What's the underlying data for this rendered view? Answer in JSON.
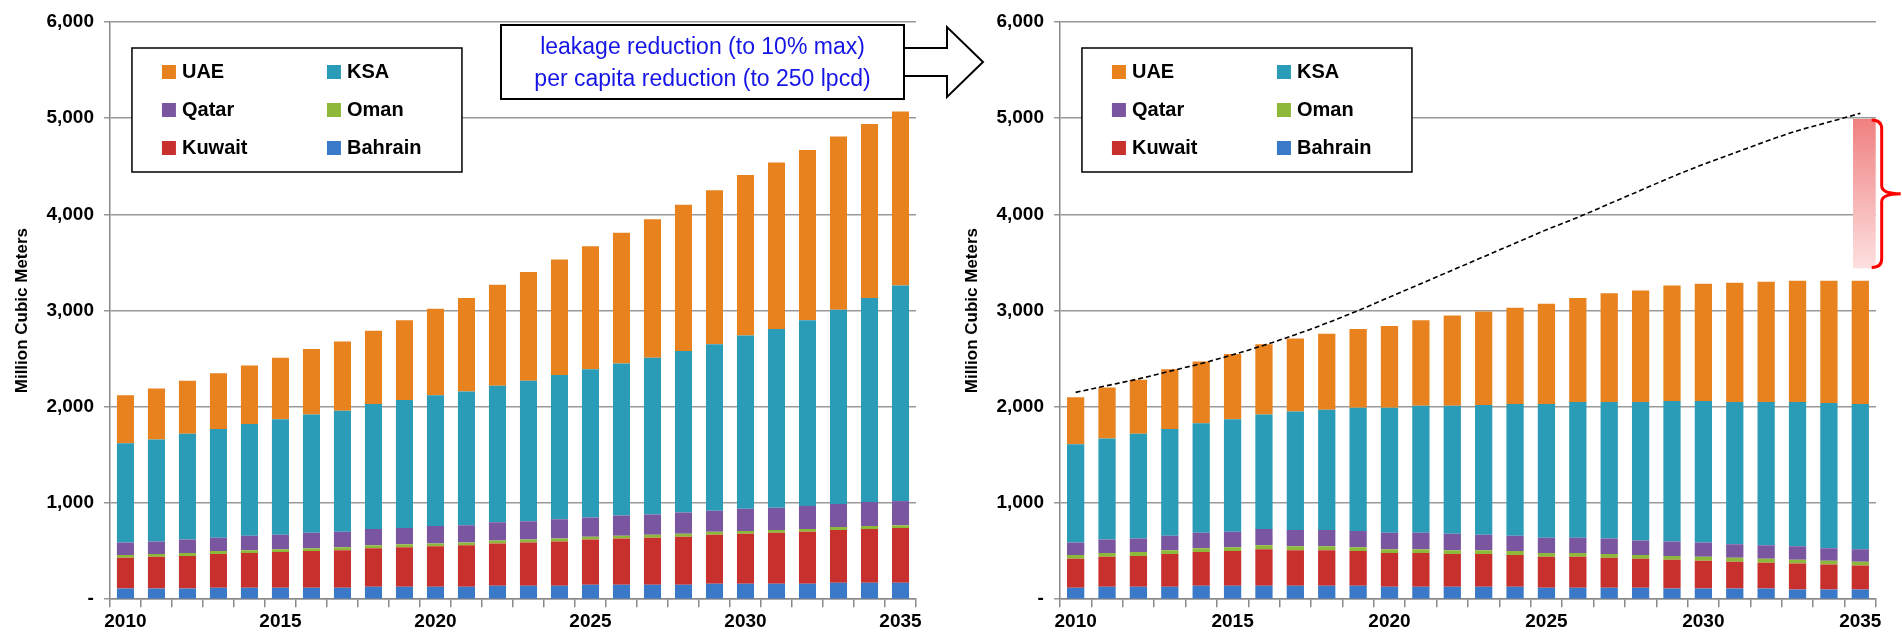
{
  "chart_data": [
    {
      "type": "bar",
      "stacked": true,
      "ylabel": "Million Cubic Meters",
      "ylim": [
        0,
        6000
      ],
      "yticks": [
        {
          "value": 0,
          "label": "-"
        },
        {
          "value": 1000,
          "label": "1,000"
        },
        {
          "value": 2000,
          "label": "2,000"
        },
        {
          "value": 3000,
          "label": "3,000"
        },
        {
          "value": 4000,
          "label": "4,000"
        },
        {
          "value": 5000,
          "label": "5,000"
        },
        {
          "value": 6000,
          "label": "6,000"
        }
      ],
      "grid": "y",
      "legend": "top left",
      "categories": [
        "2010",
        null,
        null,
        null,
        null,
        "2015",
        null,
        null,
        null,
        null,
        "2020",
        null,
        null,
        null,
        null,
        "2025",
        null,
        null,
        null,
        null,
        "2030",
        null,
        null,
        null,
        null,
        "2035"
      ],
      "series": [
        {
          "name": "Bahrain",
          "color": "#3a78c8",
          "values": [
            110,
            110,
            110,
            120,
            120,
            120,
            120,
            120,
            130,
            130,
            130,
            130,
            140,
            140,
            140,
            150,
            150,
            150,
            150,
            160,
            160,
            160,
            160,
            170,
            170,
            170
          ]
        },
        {
          "name": "Kuwait",
          "color": "#c8302e",
          "values": [
            320,
            330,
            340,
            350,
            360,
            370,
            380,
            390,
            400,
            410,
            420,
            430,
            440,
            450,
            460,
            470,
            480,
            490,
            500,
            510,
            520,
            530,
            540,
            550,
            560,
            570
          ]
        },
        {
          "name": "Oman",
          "color": "#8db83a",
          "values": [
            30,
            30,
            30,
            30,
            30,
            30,
            30,
            30,
            30,
            30,
            30,
            30,
            30,
            30,
            30,
            30,
            30,
            30,
            30,
            30,
            30,
            30,
            30,
            30,
            30,
            30
          ]
        },
        {
          "name": "Qatar",
          "color": "#7a55a0",
          "values": [
            130,
            130,
            140,
            140,
            150,
            150,
            160,
            160,
            170,
            170,
            180,
            180,
            190,
            190,
            200,
            200,
            210,
            210,
            220,
            220,
            230,
            230,
            240,
            240,
            250,
            250
          ]
        },
        {
          "name": "KSA",
          "color": "#2b9cb8",
          "values": [
            1030,
            1060,
            1100,
            1130,
            1160,
            1200,
            1230,
            1260,
            1300,
            1330,
            1360,
            1390,
            1420,
            1460,
            1500,
            1540,
            1580,
            1630,
            1680,
            1730,
            1800,
            1860,
            1930,
            2020,
            2120,
            2240
          ]
        },
        {
          "name": "UAE",
          "color": "#e8821e",
          "values": [
            500,
            530,
            550,
            580,
            610,
            640,
            680,
            720,
            760,
            830,
            900,
            970,
            1050,
            1130,
            1200,
            1280,
            1360,
            1440,
            1520,
            1600,
            1670,
            1730,
            1770,
            1800,
            1810,
            1810
          ]
        }
      ],
      "annotations": [
        "leakage reduction (to 10% max)",
        "per capita reduction (to 250 lpcd)"
      ]
    },
    {
      "type": "bar",
      "stacked": true,
      "ylabel": "Million Cubic Meters",
      "ylim": [
        0,
        6000
      ],
      "yticks": [
        {
          "value": 0,
          "label": "-"
        },
        {
          "value": 1000,
          "label": "1,000"
        },
        {
          "value": 2000,
          "label": "2,000"
        },
        {
          "value": 3000,
          "label": "3,000"
        },
        {
          "value": 4000,
          "label": "4,000"
        },
        {
          "value": 5000,
          "label": "5,000"
        },
        {
          "value": 6000,
          "label": "6,000"
        }
      ],
      "grid": "y",
      "legend": "top left",
      "categories": [
        "2010",
        null,
        null,
        null,
        null,
        "2015",
        null,
        null,
        null,
        null,
        "2020",
        null,
        null,
        null,
        null,
        "2025",
        null,
        null,
        null,
        null,
        "2030",
        null,
        null,
        null,
        null,
        "2035"
      ],
      "series": [
        {
          "name": "Bahrain",
          "color": "#3a78c8",
          "values": [
            120,
            130,
            130,
            130,
            140,
            140,
            140,
            140,
            140,
            140,
            130,
            130,
            130,
            130,
            130,
            120,
            120,
            120,
            120,
            110,
            110,
            110,
            110,
            100,
            100,
            100
          ]
        },
        {
          "name": "Kuwait",
          "color": "#c8302e",
          "values": [
            300,
            310,
            320,
            340,
            350,
            360,
            380,
            370,
            370,
            360,
            350,
            350,
            340,
            340,
            330,
            320,
            320,
            310,
            300,
            300,
            290,
            280,
            270,
            270,
            260,
            250
          ]
        },
        {
          "name": "Oman",
          "color": "#8db83a",
          "values": [
            40,
            40,
            40,
            40,
            40,
            40,
            40,
            40,
            40,
            40,
            40,
            40,
            40,
            40,
            40,
            40,
            40,
            40,
            40,
            40,
            40,
            40,
            40,
            40,
            40,
            40
          ]
        },
        {
          "name": "Qatar",
          "color": "#7a55a0",
          "values": [
            130,
            140,
            140,
            150,
            160,
            160,
            170,
            170,
            170,
            170,
            170,
            170,
            170,
            160,
            160,
            160,
            160,
            160,
            150,
            150,
            150,
            140,
            140,
            140,
            130,
            130
          ]
        },
        {
          "name": "KSA",
          "color": "#2b9cb8",
          "values": [
            1020,
            1050,
            1090,
            1110,
            1140,
            1170,
            1190,
            1230,
            1250,
            1280,
            1300,
            1320,
            1330,
            1350,
            1370,
            1390,
            1410,
            1420,
            1440,
            1460,
            1470,
            1480,
            1490,
            1500,
            1510,
            1510
          ]
        },
        {
          "name": "UAE",
          "color": "#e8821e",
          "values": [
            490,
            530,
            560,
            620,
            640,
            680,
            730,
            760,
            790,
            820,
            850,
            890,
            940,
            970,
            1000,
            1040,
            1080,
            1130,
            1160,
            1200,
            1220,
            1240,
            1250,
            1260,
            1270,
            1280
          ]
        },
        {
          "type": "line",
          "color": "#000000",
          "line_style": "dashed",
          "marker": "none",
          "values": [
            2150,
            2220,
            2290,
            2370,
            2450,
            2540,
            2640,
            2750,
            2870,
            3000,
            3140,
            3280,
            3420,
            3560,
            3700,
            3840,
            3970,
            4110,
            4250,
            4390,
            4520,
            4640,
            4760,
            4870,
            4960,
            5050
          ]
        }
      ]
    }
  ]
}
